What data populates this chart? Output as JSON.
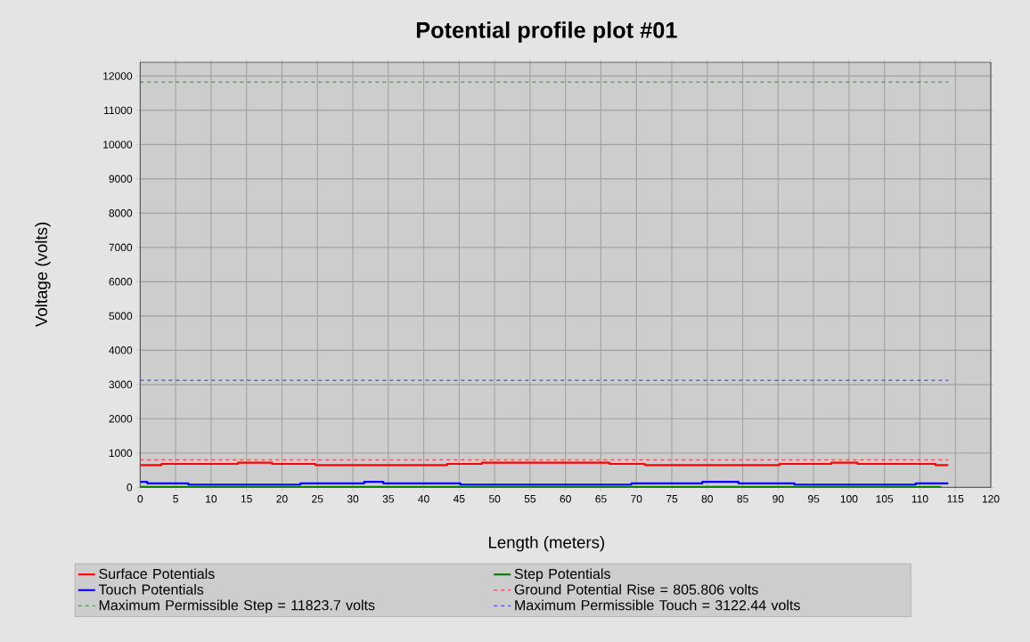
{
  "chart_data": {
    "type": "step",
    "title": "Potential profile plot #01",
    "xlabel": "Length (meters)",
    "ylabel": "Voltage (volts)",
    "xlim": [
      0,
      120
    ],
    "xticks": [
      0,
      5,
      10,
      15,
      20,
      25,
      30,
      35,
      40,
      45,
      50,
      55,
      60,
      65,
      70,
      75,
      80,
      85,
      90,
      95,
      100,
      105,
      110,
      115,
      120
    ],
    "ylim": [
      0,
      12400
    ],
    "yticks": [
      0,
      1000,
      2000,
      3000,
      4000,
      5000,
      6000,
      7000,
      8000,
      9000,
      10000,
      11000,
      12000
    ],
    "grid": true,
    "legend": "bottom",
    "line_style": "solid",
    "series": [
      {
        "name": "Surface Potentials",
        "color": "#ff0000",
        "x": [
          0,
          3,
          13.8,
          18.6,
          24.7,
          43.3,
          48.2,
          66.2,
          71.2,
          90.2,
          97.5,
          101.2,
          112.2,
          114
        ],
        "values": [
          650,
          685,
          720,
          685,
          650,
          685,
          720,
          685,
          650,
          685,
          720,
          685,
          650,
          650
        ]
      },
      {
        "name": "Step Potentials",
        "color": "#008000",
        "x": [
          0,
          113
        ],
        "values": [
          15,
          15
        ]
      },
      {
        "name": "Touch Potentials",
        "color": "#0000ff",
        "x": [
          0,
          1,
          6.8,
          22.6,
          31.6,
          34.3,
          45.2,
          69.3,
          79.3,
          84.4,
          92.3,
          109.4,
          114
        ],
        "values": [
          160,
          115,
          80,
          115,
          160,
          115,
          80,
          115,
          160,
          115,
          80,
          115,
          115
        ]
      }
    ],
    "ref_lines": [
      {
        "axis": "y",
        "value": 805.806,
        "label": "Ground Potential Rise = 805.806 volts",
        "color": "#ff0000",
        "line_style": "dashed"
      },
      {
        "axis": "y",
        "value": 11823.7,
        "label": "Maximum Permissible Step = 11823.7 volts",
        "color": "#008000",
        "line_style": "dashed"
      },
      {
        "axis": "y",
        "value": 3122.44,
        "label": "Maximum Permissible Touch = 3122.44 volts",
        "color": "#0000ff",
        "line_style": "dashed"
      }
    ]
  }
}
